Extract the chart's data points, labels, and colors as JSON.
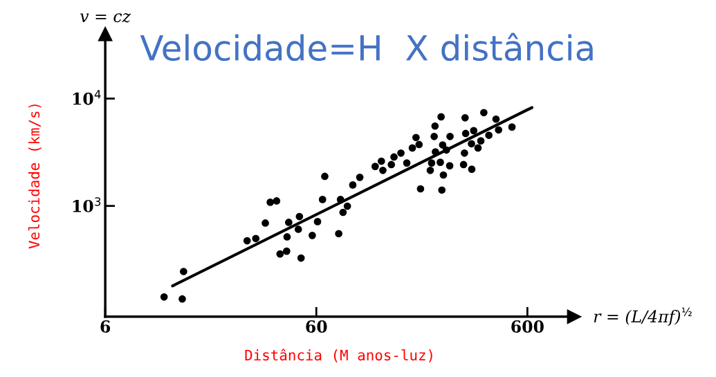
{
  "chart_data": {
    "type": "scatter",
    "title": "Velocidade=H  X distância",
    "xlabel": "Distância (M anos-luz)",
    "ylabel": "Velocidade (km/s)",
    "annotations": [
      "v = cz",
      "r = (L/4πf)$^{½}$"
    ],
    "log": "xy",
    "xlim": [
      6,
      1000
    ],
    "xticks": [
      6,
      60,
      600
    ],
    "ylim": [
      93,
      40000
    ],
    "yticks": [
      {
        "value": 1000,
        "label": "10$^{3}$"
      },
      {
        "value": 10000,
        "label": "10$^{4}$"
      }
    ],
    "grid": false,
    "legend": false,
    "series": [
      {
        "marker": "circle",
        "color": "#000000",
        "x": [
          11.4,
          13.9,
          14.1,
          28.2,
          31.0,
          34.4,
          36.3,
          38.9,
          40.4,
          43.4,
          43.6,
          44.4,
          49.9,
          49.3,
          50.8,
          57.4,
          60.8,
          64.2,
          65.8,
          76.6,
          78.1,
          80.3,
          84.2,
          89.3,
          96.4,
          114,
          122,
          124,
          136,
          140,
          151,
          161,
          171,
          178,
          184,
          187,
          208,
          211,
          217,
          220,
          219,
          232,
          234,
          236,
          240,
          238,
          248,
          257,
          258,
          299,
          304,
          302,
          306,
          327,
          326,
          334,
          350,
          361,
          373,
          394,
          426,
          438,
          507
        ],
        "values": [
          142,
          136,
          245,
          474,
          497,
          693,
          1082,
          1114,
          357,
          379,
          515,
          703,
          797,
          606,
          327,
          531,
          714,
          1148,
          1885,
          552,
          1148,
          871,
          995,
          1568,
          1847,
          2333,
          2612,
          2143,
          2427,
          2858,
          3105,
          2512,
          3467,
          4335,
          3733,
          1443,
          2143,
          2512,
          4436,
          3187,
          5546,
          2548,
          6761,
          1406,
          1941,
          3698,
          3319,
          2366,
          4436,
          2427,
          6622,
          3105,
          4732,
          2198,
          3793,
          5025,
          3467,
          4038,
          7396,
          4550,
          6431,
          5105,
          5433
        ]
      },
      {
        "type": "line",
        "color": "#000000",
        "x": [
          12.5,
          630
        ],
        "values": [
          180,
          8241
        ]
      }
    ]
  }
}
